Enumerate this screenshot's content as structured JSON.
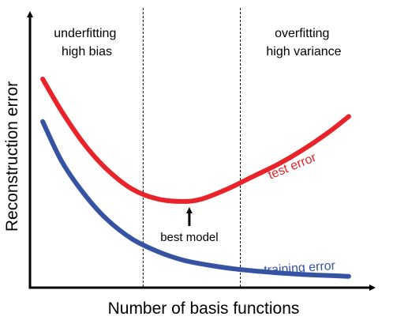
{
  "chart_data": {
    "type": "line",
    "xlabel": "Number of basis functions",
    "ylabel": "Reconstruction error",
    "xlim": [
      0,
      1
    ],
    "ylim": [
      0,
      1
    ],
    "grid": false,
    "ticks": "none",
    "regions": [
      {
        "lines": [
          "underfitting",
          "high bias"
        ]
      },
      {
        "lines": [
          "overfitting",
          "high variance"
        ]
      }
    ],
    "dividers_x": [
      0.335,
      0.64
    ],
    "series": [
      {
        "name": "test error",
        "color": "#e8232a",
        "x": [
          0.02,
          0.08,
          0.15,
          0.22,
          0.3,
          0.38,
          0.46,
          0.52,
          0.6,
          0.68,
          0.76,
          0.84,
          0.92,
          0.98
        ],
        "y": [
          0.81,
          0.68,
          0.55,
          0.45,
          0.37,
          0.33,
          0.32,
          0.33,
          0.37,
          0.42,
          0.47,
          0.53,
          0.6,
          0.66
        ]
      },
      {
        "name": "training error",
        "color": "#3652a3",
        "x": [
          0.02,
          0.08,
          0.15,
          0.22,
          0.3,
          0.38,
          0.46,
          0.54,
          0.62,
          0.7,
          0.78,
          0.86,
          0.94,
          0.98
        ],
        "y": [
          0.64,
          0.48,
          0.35,
          0.25,
          0.17,
          0.12,
          0.085,
          0.065,
          0.05,
          0.04,
          0.032,
          0.026,
          0.022,
          0.02
        ]
      }
    ],
    "annotation": {
      "text": "best model",
      "x": 0.48
    }
  }
}
